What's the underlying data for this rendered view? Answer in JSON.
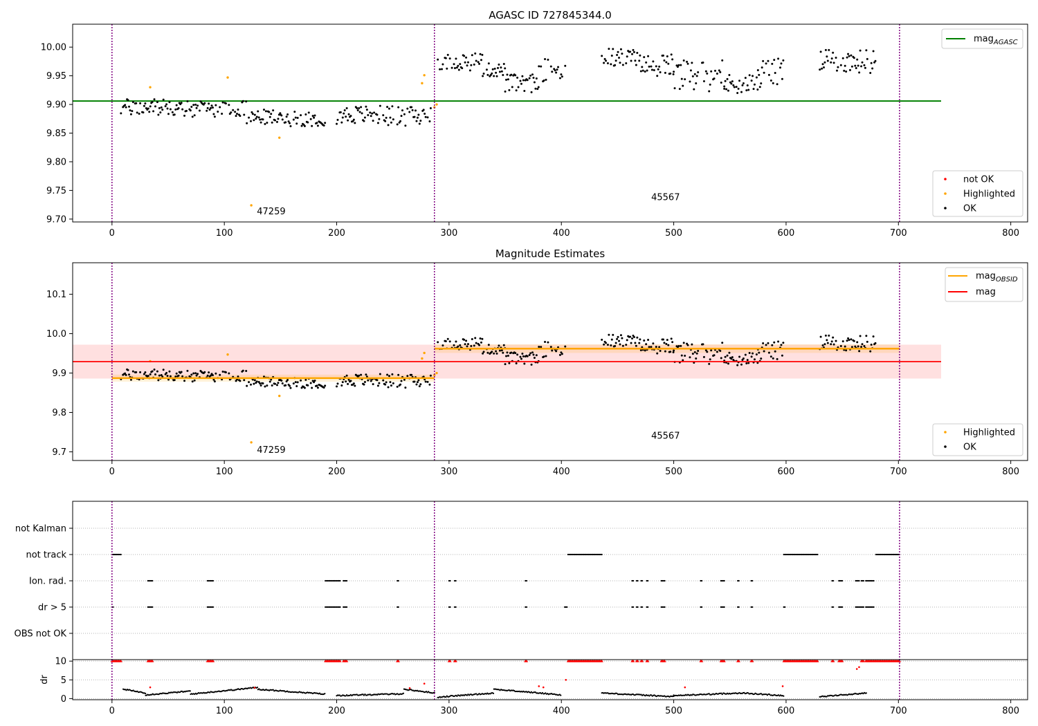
{
  "chart_data": [
    {
      "type": "scatter",
      "title": "AGASC ID 727845344.0",
      "xlim": [
        -35,
        815
      ],
      "ylim": [
        9.695,
        10.04
      ],
      "xticks": [
        0,
        100,
        200,
        300,
        400,
        500,
        600,
        700,
        800
      ],
      "yticks": [
        9.7,
        9.75,
        9.8,
        9.85,
        9.9,
        9.95,
        10.0
      ],
      "obs_boundaries": [
        0,
        287,
        701
      ],
      "obs_labels": [
        {
          "text": "47259",
          "x": 129,
          "y": 9.708
        },
        {
          "text": "45567",
          "x": 480,
          "y": 9.733
        }
      ],
      "lines": [
        {
          "name": "mag_AGASC",
          "color": "#008000",
          "x": [
            -35,
            738
          ],
          "y": [
            9.906,
            9.906
          ]
        }
      ],
      "legend_upper": [
        {
          "label": "mag",
          "sub": "AGASC",
          "color": "#008000",
          "kind": "line"
        }
      ],
      "legend_lower": [
        {
          "label": "not OK",
          "color": "#ff0000",
          "kind": "dot"
        },
        {
          "label": "Highlighted",
          "color": "#ffa500",
          "kind": "dot"
        },
        {
          "label": "OK",
          "color": "#000000",
          "kind": "dot"
        }
      ],
      "series": [
        {
          "name": "OK",
          "color": "#000000",
          "segments": [
            {
              "x0": 8,
              "x1": 60,
              "y": 9.895,
              "amp": 0.015
            },
            {
              "x0": 60,
              "x1": 120,
              "y": 9.892,
              "amp": 0.014
            },
            {
              "x0": 120,
              "x1": 150,
              "y": 9.878,
              "amp": 0.013
            },
            {
              "x0": 150,
              "x1": 190,
              "y": 9.875,
              "amp": 0.013
            },
            {
              "x0": 200,
              "x1": 245,
              "y": 9.882,
              "amp": 0.016
            },
            {
              "x0": 245,
              "x1": 285,
              "y": 9.88,
              "amp": 0.018
            },
            {
              "x0": 290,
              "x1": 330,
              "y": 9.975,
              "amp": 0.016
            },
            {
              "x0": 330,
              "x1": 350,
              "y": 9.96,
              "amp": 0.012
            },
            {
              "x0": 350,
              "x1": 380,
              "y": 9.937,
              "amp": 0.016
            },
            {
              "x0": 380,
              "x1": 404,
              "y": 9.96,
              "amp": 0.02
            },
            {
              "x0": 436,
              "x1": 470,
              "y": 9.982,
              "amp": 0.016
            },
            {
              "x0": 470,
              "x1": 500,
              "y": 9.968,
              "amp": 0.02
            },
            {
              "x0": 500,
              "x1": 545,
              "y": 9.95,
              "amp": 0.028
            },
            {
              "x0": 545,
              "x1": 575,
              "y": 9.935,
              "amp": 0.018
            },
            {
              "x0": 575,
              "x1": 598,
              "y": 9.955,
              "amp": 0.025
            },
            {
              "x0": 630,
              "x1": 680,
              "y": 9.975,
              "amp": 0.02
            }
          ]
        },
        {
          "name": "Highlighted",
          "color": "#ffa500",
          "points": [
            {
              "x": 34,
              "y": 9.93
            },
            {
              "x": 103,
              "y": 9.947
            },
            {
              "x": 124,
              "y": 9.724
            },
            {
              "x": 149,
              "y": 9.842
            },
            {
              "x": 276,
              "y": 9.937
            },
            {
              "x": 278,
              "y": 9.951
            },
            {
              "x": 287,
              "y": 9.895
            },
            {
              "x": 289,
              "y": 9.9
            }
          ]
        }
      ]
    },
    {
      "type": "scatter",
      "title": "Magnitude Estimates",
      "xlim": [
        -35,
        815
      ],
      "ylim": [
        9.678,
        10.18
      ],
      "xticks": [
        0,
        100,
        200,
        300,
        400,
        500,
        600,
        700,
        800
      ],
      "yticks": [
        9.7,
        9.8,
        9.9,
        10.0,
        10.1
      ],
      "obs_boundaries": [
        0,
        287,
        701
      ],
      "obs_labels": [
        {
          "text": "47259",
          "x": 129,
          "y": 9.697
        },
        {
          "text": "45567",
          "x": 480,
          "y": 9.733
        }
      ],
      "lines": [
        {
          "name": "mag_OBSID",
          "color": "#ffa500",
          "x": [
            0,
            287
          ],
          "y": [
            9.887,
            9.887
          ]
        },
        {
          "name": "mag_OBSID",
          "color": "#ffa500",
          "x": [
            287,
            701
          ],
          "y": [
            9.962,
            9.962
          ]
        },
        {
          "name": "mag",
          "color": "#ff0000",
          "x": [
            -35,
            738
          ],
          "y": [
            9.929,
            9.929
          ]
        }
      ],
      "bands": [
        {
          "color": "#ff0000",
          "opacity": 0.12,
          "x": [
            -35,
            738
          ],
          "y": [
            9.886,
            9.972
          ]
        },
        {
          "color": "#ffa500",
          "opacity": 0.15,
          "x": [
            0,
            287
          ],
          "y": [
            9.878,
            9.896
          ]
        },
        {
          "color": "#ffa500",
          "opacity": 0.15,
          "x": [
            287,
            701
          ],
          "y": [
            9.951,
            9.973
          ]
        }
      ],
      "legend_upper": [
        {
          "label": "mag",
          "sub": "OBSID",
          "color": "#ffa500",
          "kind": "line"
        },
        {
          "label": "mag",
          "sub": "",
          "color": "#ff0000",
          "kind": "line"
        }
      ],
      "legend_lower": [
        {
          "label": "Highlighted",
          "color": "#ffa500",
          "kind": "dot"
        },
        {
          "label": "OK",
          "color": "#000000",
          "kind": "dot"
        }
      ]
    },
    {
      "type": "scatter",
      "xlim": [
        -35,
        815
      ],
      "categories": [
        "not Kalman",
        "not track",
        "Ion. rad.",
        "dr > 5",
        "OBS not OK"
      ],
      "obs_boundaries": [
        0,
        287,
        701
      ],
      "flags": [
        {
          "category": "not track",
          "ranges": [
            [
              0,
              8
            ],
            [
              406,
              436
            ],
            [
              598,
              628
            ],
            [
              680,
              701
            ]
          ]
        },
        {
          "category": "Ion. rad.",
          "ranges": [
            [
              32,
              36
            ],
            [
              85,
              90
            ],
            [
              190,
              203
            ],
            [
              206,
              209
            ],
            [
              254,
              255
            ],
            [
              300,
              301
            ],
            [
              305,
              306
            ],
            [
              368,
              369
            ],
            [
              463,
              464
            ],
            [
              467,
              468
            ],
            [
              471,
              472
            ],
            [
              476,
              477
            ],
            [
              489,
              492
            ],
            [
              524,
              525
            ],
            [
              542,
              545
            ],
            [
              557,
              558
            ],
            [
              569,
              570
            ],
            [
              641,
              642
            ],
            [
              647,
              650
            ],
            [
              662,
              665
            ],
            [
              667,
              669
            ],
            [
              671,
              678
            ]
          ]
        },
        {
          "category": "dr > 5",
          "ranges": [
            [
              0,
              1
            ],
            [
              32,
              36
            ],
            [
              85,
              90
            ],
            [
              190,
              203
            ],
            [
              206,
              209
            ],
            [
              254,
              255
            ],
            [
              300,
              301
            ],
            [
              305,
              306
            ],
            [
              368,
              369
            ],
            [
              403,
              405
            ],
            [
              463,
              464
            ],
            [
              467,
              468
            ],
            [
              471,
              472
            ],
            [
              476,
              477
            ],
            [
              489,
              492
            ],
            [
              524,
              525
            ],
            [
              542,
              545
            ],
            [
              557,
              558
            ],
            [
              569,
              570
            ],
            [
              598,
              599
            ],
            [
              641,
              642
            ],
            [
              647,
              650
            ],
            [
              662,
              669
            ],
            [
              671,
              678
            ]
          ]
        }
      ]
    },
    {
      "type": "scatter",
      "ylabel": "dr",
      "xlim": [
        -35,
        815
      ],
      "ylim": [
        -0.3,
        10.4
      ],
      "xticks": [
        0,
        100,
        200,
        300,
        400,
        500,
        600,
        700,
        800
      ],
      "yticks": [
        0,
        5,
        10
      ],
      "obs_boundaries": [
        0,
        287,
        701
      ],
      "ok_segments": [
        {
          "x0": 10,
          "x1": 30,
          "y0": 2.5,
          "y1": 1.5
        },
        {
          "x0": 30,
          "x1": 70,
          "y0": 1.0,
          "y1": 2.0
        },
        {
          "x0": 70,
          "x1": 130,
          "y0": 1.2,
          "y1": 3.0
        },
        {
          "x0": 130,
          "x1": 190,
          "y0": 2.5,
          "y1": 1.2
        },
        {
          "x0": 200,
          "x1": 260,
          "y0": 0.8,
          "y1": 1.3
        },
        {
          "x0": 260,
          "x1": 287,
          "y0": 2.5,
          "y1": 1.5
        },
        {
          "x0": 290,
          "x1": 340,
          "y0": 0.4,
          "y1": 1.5
        },
        {
          "x0": 340,
          "x1": 400,
          "y0": 2.5,
          "y1": 1.0
        },
        {
          "x0": 436,
          "x1": 500,
          "y0": 1.5,
          "y1": 0.5
        },
        {
          "x0": 500,
          "x1": 560,
          "y0": 0.8,
          "y1": 1.5
        },
        {
          "x0": 560,
          "x1": 598,
          "y0": 1.5,
          "y1": 0.8
        },
        {
          "x0": 630,
          "x1": 672,
          "y0": 0.5,
          "y1": 1.5
        }
      ],
      "clipped_ranges": [
        [
          0,
          8
        ],
        [
          32,
          36
        ],
        [
          85,
          90
        ],
        [
          190,
          203
        ],
        [
          206,
          209
        ],
        [
          254,
          255
        ],
        [
          300,
          301
        ],
        [
          305,
          306
        ],
        [
          368,
          369
        ],
        [
          406,
          436
        ],
        [
          463,
          464
        ],
        [
          467,
          468
        ],
        [
          471,
          472
        ],
        [
          476,
          477
        ],
        [
          489,
          492
        ],
        [
          524,
          525
        ],
        [
          542,
          545
        ],
        [
          557,
          558
        ],
        [
          569,
          570
        ],
        [
          598,
          628
        ],
        [
          641,
          642
        ],
        [
          647,
          650
        ],
        [
          667,
          669
        ],
        [
          671,
          701
        ]
      ],
      "red_points": [
        {
          "x": 34,
          "y": 3.0
        },
        {
          "x": 127,
          "y": 2.9
        },
        {
          "x": 265,
          "y": 2.8
        },
        {
          "x": 278,
          "y": 4.0
        },
        {
          "x": 380,
          "y": 3.3
        },
        {
          "x": 384,
          "y": 3.0
        },
        {
          "x": 404,
          "y": 5.0
        },
        {
          "x": 510,
          "y": 3.0
        },
        {
          "x": 597,
          "y": 3.3
        },
        {
          "x": 663,
          "y": 7.9
        },
        {
          "x": 665,
          "y": 8.4
        }
      ]
    }
  ]
}
